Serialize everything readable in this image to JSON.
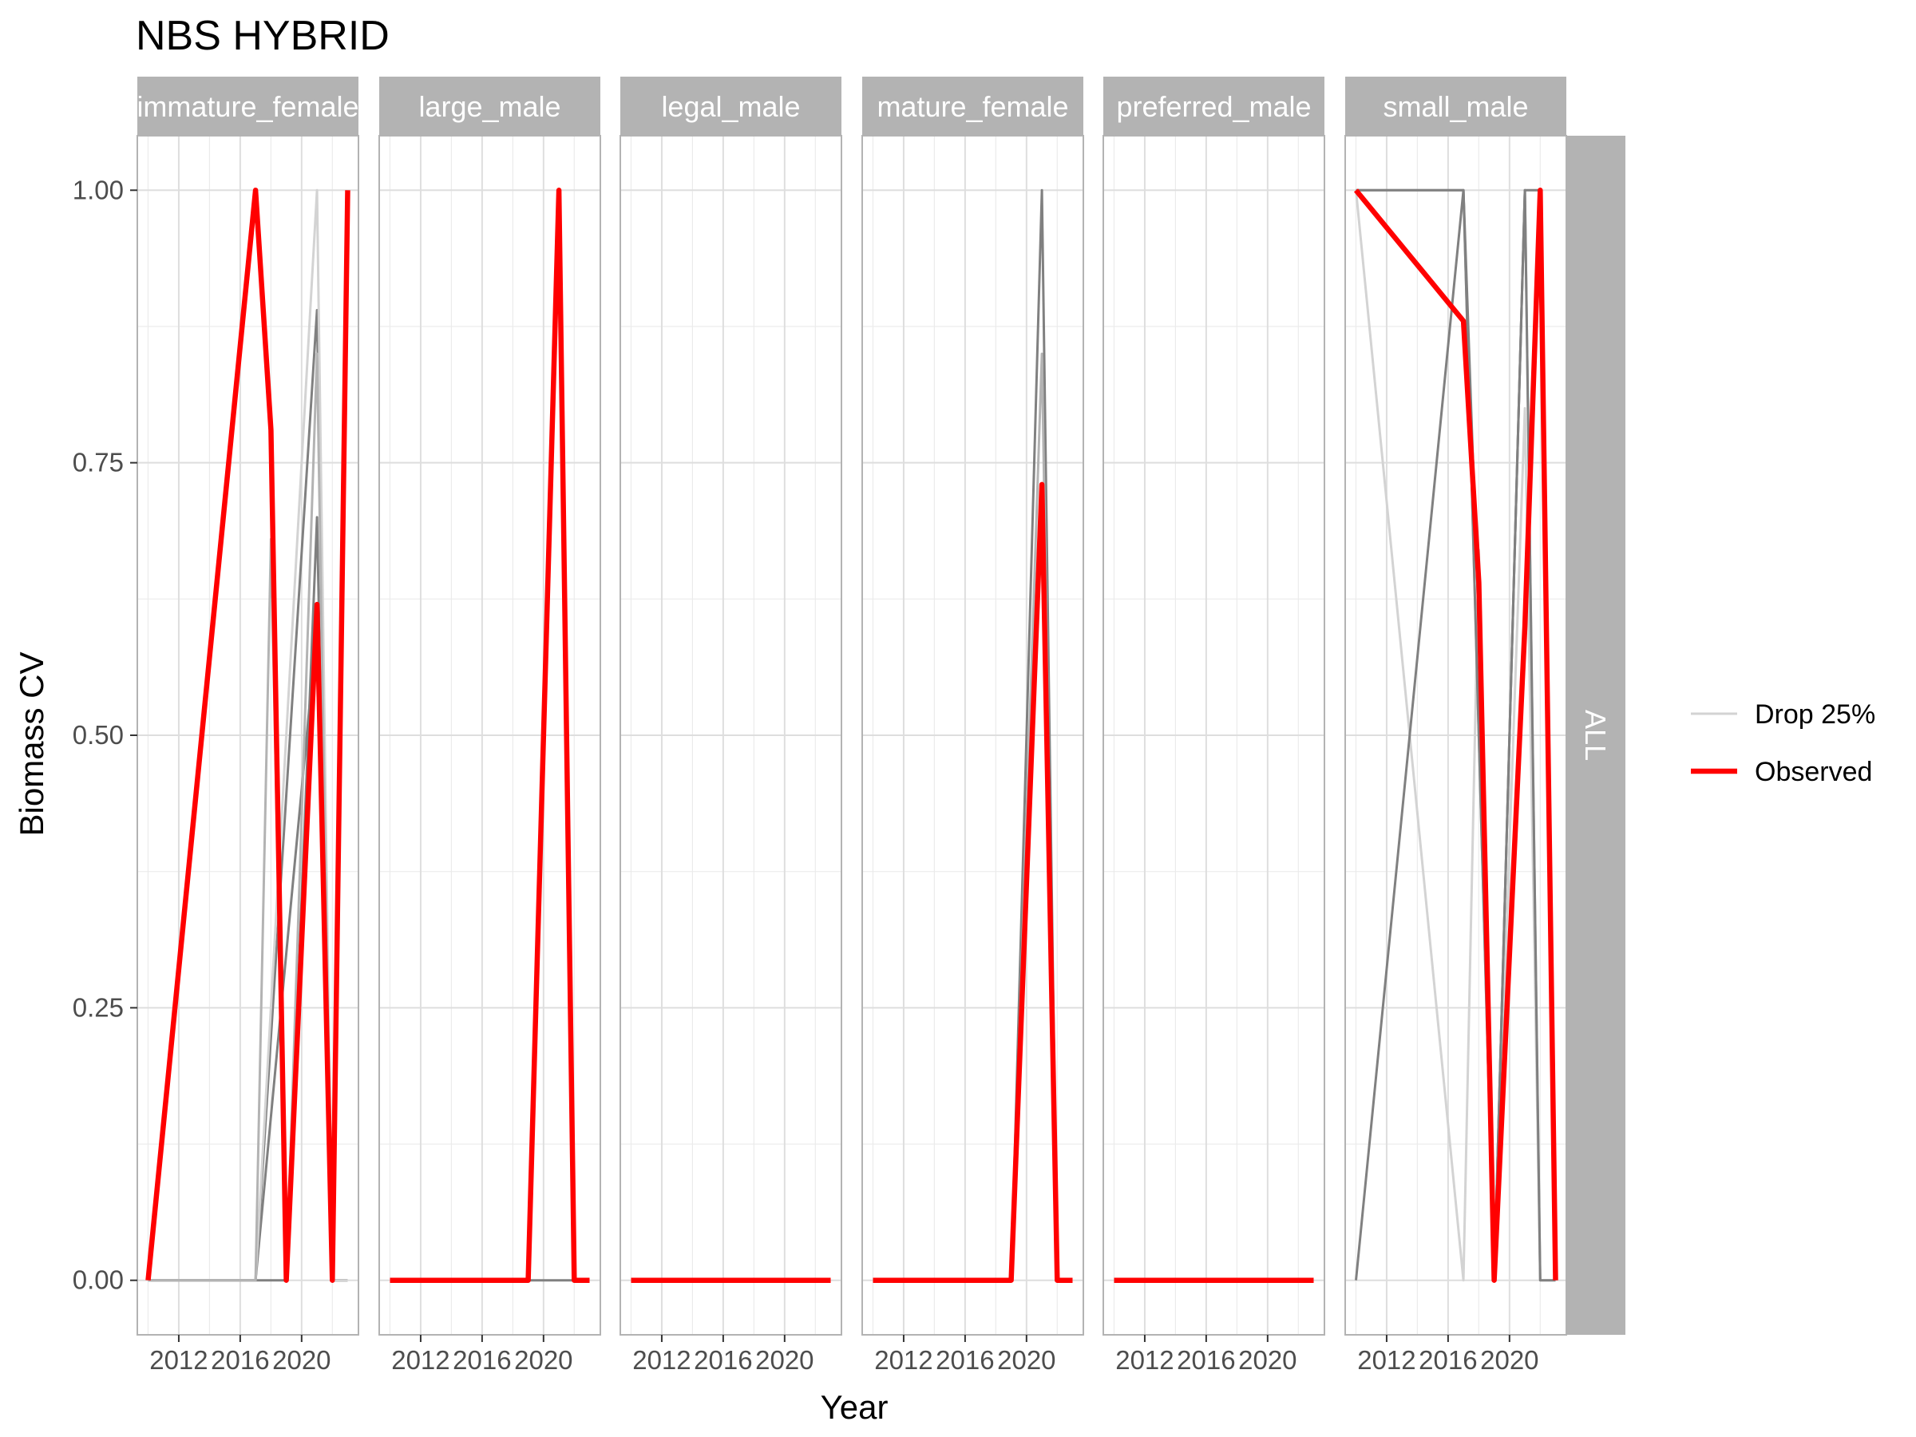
{
  "chart_data": {
    "type": "line",
    "title": "NBS HYBRID",
    "xlabel": "Year",
    "ylabel": "Biomass CV",
    "xlim": [
      2009.3,
      2023.7
    ],
    "ylim": [
      -0.05,
      1.05
    ],
    "x_ticks": [
      2012,
      2016,
      2020
    ],
    "x_tick_labels": [
      "2012",
      "2016",
      "2020"
    ],
    "y_ticks": [
      0,
      0.25,
      0.5,
      0.75,
      1.0
    ],
    "y_tick_labels": [
      "0.00",
      "0.25",
      "0.50",
      "0.75",
      "1.00"
    ],
    "facet_row_label": "ALL",
    "grid": true,
    "legend_position": "right",
    "legend": [
      {
        "label": "Drop 25%",
        "color": "#d3d3d3"
      },
      {
        "label": "Observed",
        "color": "#ff0000"
      }
    ],
    "colors": {
      "observed": "#ff0000",
      "drop_light": "#d3d3d3",
      "drop_mid": "#b3b3b3",
      "drop_dark": "#808080",
      "strip": "#b3b3b3",
      "grid": "#ebebeb",
      "panel_border": "#b3b3b3"
    },
    "panels": [
      {
        "name": "immature_female",
        "drop_series": [
          {
            "shade": "drop_dark",
            "x": [
              2010,
              2017,
              2021,
              2022,
              2023
            ],
            "y": [
              0,
              0,
              0.89,
              0,
              0
            ]
          },
          {
            "shade": "drop_dark",
            "x": [
              2010,
              2017,
              2021,
              2022,
              2023
            ],
            "y": [
              0,
              0,
              0.6,
              0,
              0
            ]
          },
          {
            "shade": "drop_dark",
            "x": [
              2010,
              2017,
              2019,
              2021,
              2022,
              2023
            ],
            "y": [
              0,
              0,
              0,
              0.7,
              0,
              0
            ]
          },
          {
            "shade": "drop_light",
            "x": [
              2010,
              2017,
              2021,
              2022,
              2023
            ],
            "y": [
              0,
              0,
              1.0,
              0,
              0
            ]
          },
          {
            "shade": "drop_mid",
            "x": [
              2010,
              2017,
              2018,
              2019,
              2021,
              2022
            ],
            "y": [
              0,
              0,
              0.68,
              0,
              0.85,
              0
            ]
          }
        ],
        "observed": {
          "x": [
            2010,
            2017,
            2018,
            2019,
            2021,
            2022,
            2023
          ],
          "y": [
            0,
            1.0,
            0.78,
            0,
            0.62,
            0,
            1.0
          ]
        }
      },
      {
        "name": "large_male",
        "drop_series": [
          {
            "shade": "drop_dark",
            "x": [
              2010,
              2019,
              2021,
              2022,
              2023
            ],
            "y": [
              0,
              0,
              0,
              0,
              0
            ]
          }
        ],
        "observed": {
          "x": [
            2010,
            2019,
            2021,
            2022,
            2023
          ],
          "y": [
            0,
            0,
            1.0,
            0,
            0
          ]
        }
      },
      {
        "name": "legal_male",
        "drop_series": [
          {
            "shade": "drop_dark",
            "x": [
              2010,
              2023
            ],
            "y": [
              0,
              0
            ]
          }
        ],
        "observed": {
          "x": [
            2010,
            2017,
            2019,
            2021,
            2023
          ],
          "y": [
            0,
            0,
            0,
            0,
            0
          ]
        }
      },
      {
        "name": "mature_female",
        "drop_series": [
          {
            "shade": "drop_dark",
            "x": [
              2010,
              2019,
              2021,
              2022,
              2023
            ],
            "y": [
              0,
              0,
              1.0,
              0,
              0
            ]
          },
          {
            "shade": "drop_mid",
            "x": [
              2010,
              2019,
              2021,
              2022
            ],
            "y": [
              0,
              0,
              0.85,
              0
            ]
          }
        ],
        "observed": {
          "x": [
            2010,
            2019,
            2021,
            2022,
            2023
          ],
          "y": [
            0,
            0,
            0.73,
            0,
            0
          ]
        }
      },
      {
        "name": "preferred_male",
        "drop_series": [
          {
            "shade": "drop_dark",
            "x": [
              2010,
              2023
            ],
            "y": [
              0,
              0
            ]
          }
        ],
        "observed": {
          "x": [
            2010,
            2017,
            2019,
            2021,
            2023
          ],
          "y": [
            0,
            0,
            0,
            0,
            0
          ]
        }
      },
      {
        "name": "small_male",
        "drop_series": [
          {
            "shade": "drop_light",
            "x": [
              2010,
              2017,
              2018,
              2019,
              2021,
              2022,
              2023
            ],
            "y": [
              1.0,
              0,
              0.67,
              0,
              0.8,
              0,
              0
            ]
          },
          {
            "shade": "drop_mid",
            "x": [
              2010,
              2017,
              2019,
              2021,
              2022
            ],
            "y": [
              1.0,
              1.0,
              0,
              1.0,
              0
            ]
          },
          {
            "shade": "drop_dark",
            "x": [
              2010,
              2017,
              2019,
              2021,
              2022,
              2023
            ],
            "y": [
              1.0,
              1.0,
              0,
              1.0,
              1.0,
              0
            ]
          },
          {
            "shade": "drop_dark",
            "x": [
              2010,
              2017,
              2018,
              2019,
              2021,
              2022,
              2023
            ],
            "y": [
              0,
              1.0,
              0.6,
              0,
              1.0,
              0,
              0
            ]
          }
        ],
        "observed": {
          "x": [
            2010,
            2017,
            2018,
            2019,
            2021,
            2022,
            2023
          ],
          "y": [
            1.0,
            0.88,
            0.64,
            0,
            0.6,
            1.0,
            0
          ]
        }
      }
    ]
  }
}
